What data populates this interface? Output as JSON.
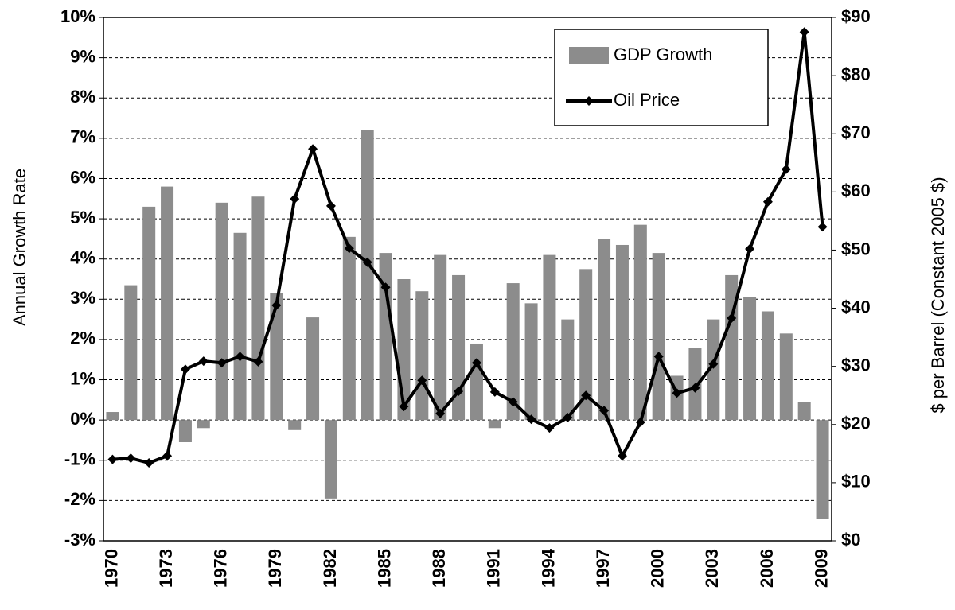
{
  "chart_data": {
    "type": "bar_line",
    "categories": [
      "1970",
      null,
      null,
      "1973",
      null,
      null,
      "1976",
      null,
      null,
      "1979",
      null,
      null,
      "1982",
      null,
      null,
      "1985",
      null,
      null,
      "1988",
      null,
      null,
      "1991",
      null,
      null,
      "1994",
      null,
      null,
      "1997",
      null,
      null,
      "2000",
      null,
      null,
      "2003",
      null,
      null,
      "2006",
      null,
      null,
      "2009"
    ],
    "series": [
      {
        "name": "GDP Growth",
        "type": "bar",
        "color": "#8c8c8c",
        "values": [
          0.2,
          3.35,
          5.3,
          5.8,
          -0.55,
          -0.2,
          5.4,
          4.65,
          5.55,
          3.15,
          -0.25,
          2.55,
          -1.95,
          4.55,
          7.2,
          4.15,
          3.5,
          3.2,
          4.1,
          3.6,
          1.9,
          -0.2,
          3.4,
          2.9,
          4.1,
          2.5,
          3.75,
          4.5,
          4.35,
          4.85,
          4.15,
          1.1,
          1.8,
          2.5,
          3.6,
          3.05,
          2.7,
          2.15,
          0.45,
          -2.45
        ]
      },
      {
        "name": "Oil Price",
        "type": "line",
        "axis": "y2",
        "color": "#000000",
        "values": [
          14,
          14.2,
          13.4,
          14.6,
          29.5,
          30.9,
          30.6,
          31.7,
          30.8,
          40.5,
          58.8,
          67.4,
          57.6,
          50.3,
          47.9,
          43.6,
          23.1,
          27.6,
          21.9,
          25.7,
          30.6,
          25.6,
          23.9,
          20.9,
          19.4,
          21.2,
          25,
          22.4,
          14.6,
          20.4,
          31.7,
          25.4,
          26.3,
          30.4,
          38.3,
          50.2,
          58.3,
          63.9,
          87.5,
          54
        ]
      }
    ],
    "ylabel": "Annual Growth Rate",
    "y2label": "$ per Barrel (Constant 2005 $)",
    "ylim": [
      -3,
      10
    ],
    "yticks": [
      {
        "value": -3,
        "label": "-3%"
      },
      {
        "value": -2,
        "label": "-2%"
      },
      {
        "value": -1,
        "label": "-1%"
      },
      {
        "value": 0,
        "label": "0%"
      },
      {
        "value": 1,
        "label": "1%"
      },
      {
        "value": 2,
        "label": "2%"
      },
      {
        "value": 3,
        "label": "3%"
      },
      {
        "value": 4,
        "label": "4%"
      },
      {
        "value": 5,
        "label": "5%"
      },
      {
        "value": 6,
        "label": "6%"
      },
      {
        "value": 7,
        "label": "7%"
      },
      {
        "value": 8,
        "label": "8%"
      },
      {
        "value": 9,
        "label": "9%"
      },
      {
        "value": 10,
        "label": "10%"
      }
    ],
    "y2lim": [
      0,
      90
    ],
    "y2ticks": [
      {
        "value": 0,
        "label": "$0"
      },
      {
        "value": 10,
        "label": "$10"
      },
      {
        "value": 20,
        "label": "$20"
      },
      {
        "value": 30,
        "label": "$30"
      },
      {
        "value": 40,
        "label": "$40"
      },
      {
        "value": 50,
        "label": "$50"
      },
      {
        "value": 60,
        "label": "$60"
      },
      {
        "value": 70,
        "label": "$70"
      },
      {
        "value": 80,
        "label": "$80"
      },
      {
        "value": 90,
        "label": "$90"
      }
    ],
    "grid": true,
    "legend": "upper right"
  }
}
